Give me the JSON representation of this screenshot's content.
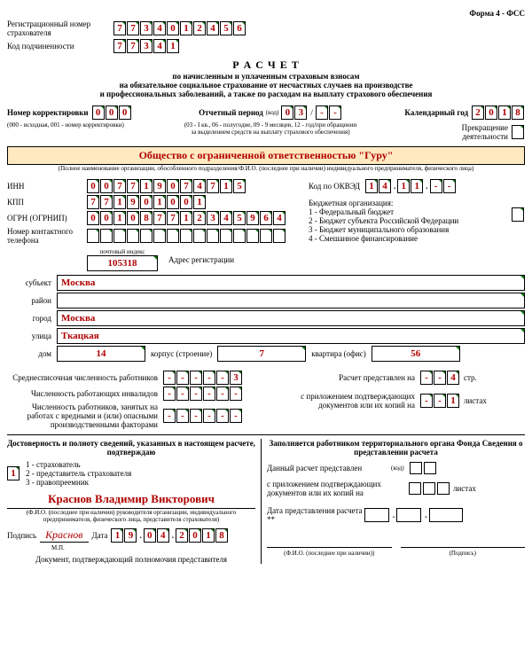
{
  "form_code": "Форма 4 - ФСС",
  "labels": {
    "reg_num": "Регистрационный номер страхователя",
    "subord": "Код подчиненности",
    "title": "Р А С Ч Е Т",
    "subtitle1": "по начисленным и уплаченным страховым взносам",
    "subtitle2": "на обязательное социальное страхование от несчастных случаев на производстве",
    "subtitle3": "и профессиональных заболеваний, а также по расходам на выплату страхового обеспечения",
    "corr_num": "Номер корректировки",
    "corr_note": "(000 - исходная, 001 - номер корректировки)",
    "report_period": "Отчетный период",
    "kod": "(код)",
    "period_note": "(03 - I кв., 06 - полугодие, 09 - 9 месяцев, 12 - год/при обращении за выделением средств на выплату страхового обеспечения)",
    "calendar_year": "Календарный год",
    "termination": "Прекращение деятельности",
    "org_note": "(Полное наименование организации, обособленного подразделения/Ф.И.О. (последнее при наличии) индивидуального предпринимателя, физического лица)",
    "inn": "ИНН",
    "kpp": "КПП",
    "ogrn": "ОГРН (ОГРНИП)",
    "phone": "Номер контактного телефона",
    "okved": "Код по ОКВЭД",
    "budget_org": "Бюджетная организация:",
    "budget1": "1 - Федеральный бюджет",
    "budget2": "2 - Бюджет субъекта Российской Федерации",
    "budget3": "3 - Бюджет муниципального образования",
    "budget4": "4 - Смешанное финансирование",
    "postal": "почтовый индекс",
    "reg_addr": "Адрес регистрации",
    "subject": "субъект",
    "district": "район",
    "city": "город",
    "street": "улица",
    "house": "дом",
    "building": "корпус (строение)",
    "flat": "квартира (офис)",
    "avg_count": "Среднесписочная численность работников",
    "disabled_count": "Численность работающих инвалидов",
    "hazard_count": "Численность работников, занятых на работах с вредными и (или) опасными производственными факторами",
    "pages": "Расчет представлен на",
    "pages_unit": "стр.",
    "attachments": "с приложением подтверждающих документов или их копий на",
    "sheets": "листах",
    "left_header": "Достоверность и полноту сведений, указанных в настоящем расчете, подтверждаю",
    "role1": "1 - страхователь",
    "role2": "2 - представитель страхователя",
    "role3": "3 - правопреемник",
    "fio_note": "(Ф.И.О. (последнее при наличии) руководителя организации, индивидуального предпринимателя, физического лица, представителя страхователя)",
    "signature": "Подпись",
    "mp": "М.П.",
    "date": "Дата",
    "doc_rep": "Документ, подтверждающий полномочия представителя",
    "right_header": "Заполняется работником территориального органа Фонда Сведения о представлении расчета",
    "submitted": "Данный расчет представлен",
    "with_att": "с приложением подтверждающих документов или их копий на",
    "date_submitted": "Дата представления расчета **",
    "fio_foot": "(Ф.И.О. (последнее при наличии))",
    "sig_foot": "(Подпись)"
  },
  "data": {
    "reg_num": [
      "7",
      "7",
      "3",
      "4",
      "0",
      "1",
      "2",
      "4",
      "5",
      "6"
    ],
    "subord": [
      "7",
      "7",
      "3",
      "4",
      "1"
    ],
    "corr": [
      "0",
      "0",
      "0"
    ],
    "period_a": [
      "0",
      "3"
    ],
    "period_b": [
      "-",
      "-"
    ],
    "year": [
      "2",
      "0",
      "1",
      "8"
    ],
    "org_name": "Общество с ограниченной ответственностью \"Гуру\"",
    "inn": [
      "0",
      "0",
      "7",
      "7",
      "1",
      "9",
      "0",
      "7",
      "4",
      "7",
      "1",
      "5"
    ],
    "kpp": [
      "7",
      "7",
      "1",
      "9",
      "0",
      "1",
      "0",
      "0",
      "1"
    ],
    "ogrn": [
      "0",
      "0",
      "1",
      "0",
      "8",
      "7",
      "7",
      "1",
      "2",
      "3",
      "4",
      "5",
      "9",
      "6",
      "4"
    ],
    "phone": [
      "",
      "",
      "",
      "",
      "",
      "",
      "",
      "",
      "",
      "",
      "",
      "",
      "",
      "",
      ""
    ],
    "okved_a": [
      "1",
      "4"
    ],
    "okved_b": [
      "1",
      "1"
    ],
    "okved_c": [
      "-",
      "-"
    ],
    "postal": "105318",
    "subject": "Москва",
    "district": "",
    "city": "Москва",
    "street": "Ткацкая",
    "house": "14",
    "building": "7",
    "flat": "56",
    "avg": [
      "-",
      "-",
      "-",
      "-",
      "-",
      "3"
    ],
    "disabled": [
      "-",
      "-",
      "-",
      "-",
      "-",
      "-"
    ],
    "hazard": [
      "-",
      "-",
      "-",
      "-",
      "-",
      "-"
    ],
    "pages": [
      "-",
      "-",
      "4"
    ],
    "attach": [
      "-",
      "-",
      "1"
    ],
    "role": "1",
    "fio": "Краснов Владимир Викторович",
    "sign": "Краснов",
    "date": [
      "1",
      "9",
      "0",
      "4",
      "2",
      "0",
      "1",
      "8"
    ]
  }
}
